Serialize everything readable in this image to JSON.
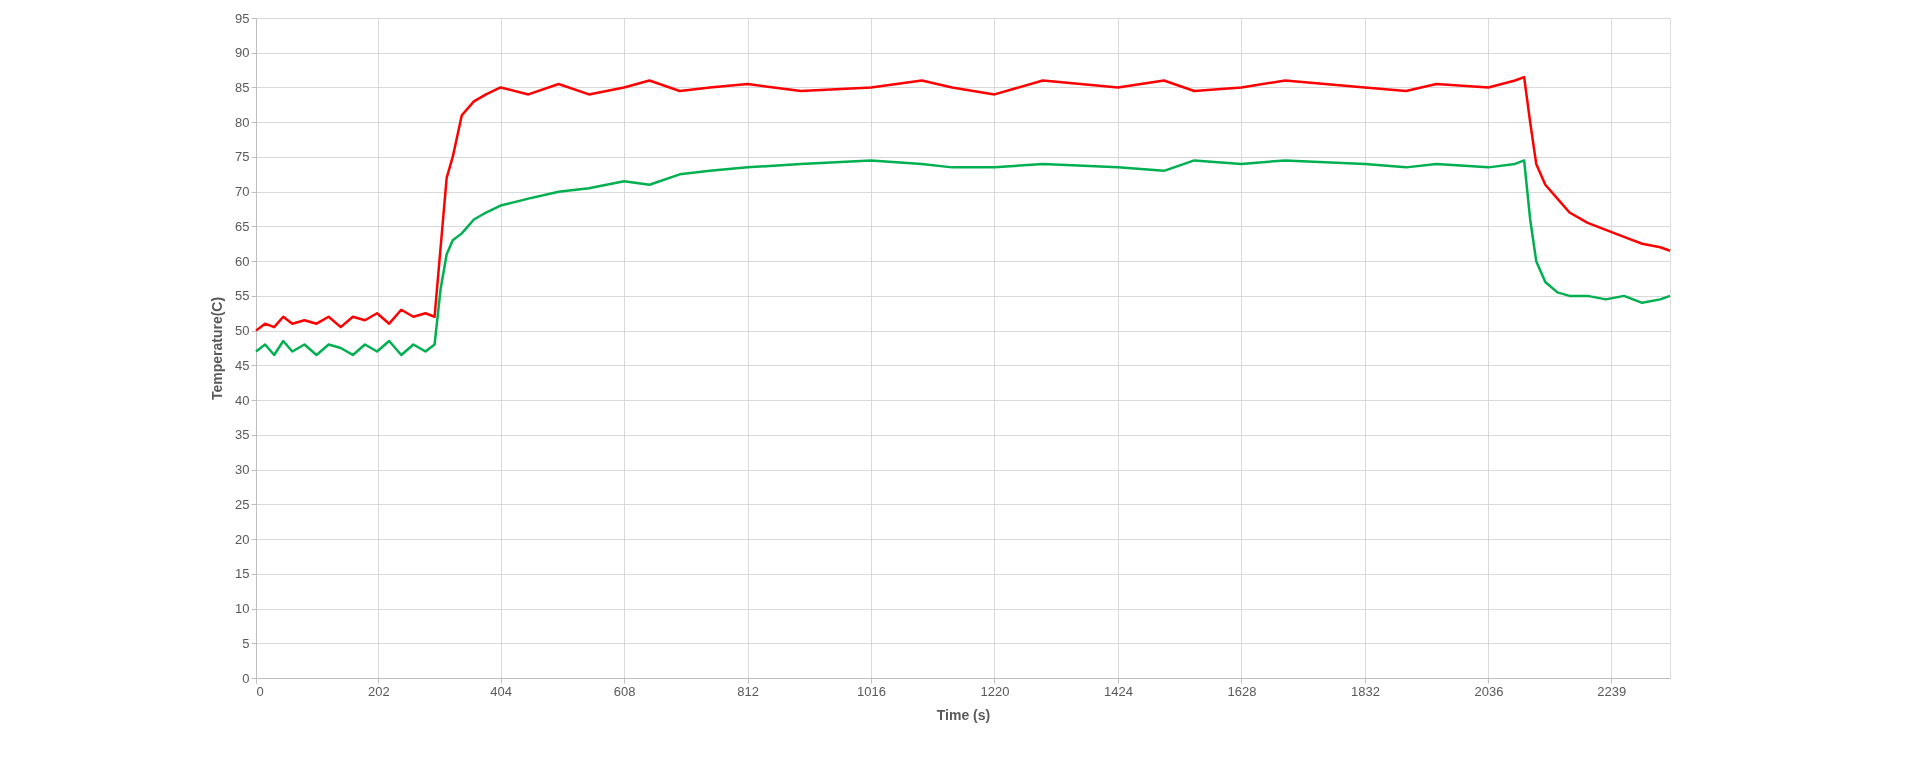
{
  "chart_data": {
    "type": "line",
    "xlabel": "Time (s)",
    "ylabel": "Temperature(C)",
    "x": [
      0,
      15,
      30,
      45,
      60,
      80,
      100,
      120,
      140,
      160,
      180,
      200,
      220,
      240,
      260,
      280,
      295,
      305,
      315,
      325,
      340,
      360,
      380,
      404,
      450,
      500,
      550,
      608,
      650,
      700,
      750,
      812,
      900,
      1016,
      1100,
      1150,
      1220,
      1300,
      1424,
      1500,
      1550,
      1628,
      1700,
      1832,
      1900,
      1950,
      2036,
      2080,
      2095,
      2105,
      2115,
      2130,
      2150,
      2170,
      2200,
      2230,
      2260,
      2290,
      2320,
      2336
    ],
    "series": [
      {
        "color": "#ff0000",
        "values": [
          50,
          51,
          50.5,
          52,
          51,
          51.5,
          51,
          52,
          50.5,
          52,
          51.5,
          52.5,
          51,
          53,
          52,
          52.5,
          52,
          62,
          72,
          75,
          81,
          83,
          84,
          85,
          84,
          85.5,
          84,
          85,
          86,
          84.5,
          85,
          85.5,
          84.5,
          85,
          86,
          85,
          84,
          86,
          85,
          86,
          84.5,
          85,
          86,
          85,
          84.5,
          85.5,
          85,
          86,
          86.5,
          80,
          74,
          71,
          69,
          67,
          65.5,
          64.5,
          63.5,
          62.5,
          62,
          61.5
        ]
      },
      {
        "color": "#00b050",
        "values": [
          47,
          48,
          46.5,
          48.5,
          47,
          48,
          46.5,
          48,
          47.5,
          46.5,
          48,
          47,
          48.5,
          46.5,
          48,
          47,
          48,
          56,
          61,
          63,
          64,
          66,
          67,
          68,
          69,
          70,
          70.5,
          71.5,
          71,
          72.5,
          73,
          73.5,
          74,
          74.5,
          74,
          73.5,
          73.5,
          74,
          73.5,
          73,
          74.5,
          74,
          74.5,
          74,
          73.5,
          74,
          73.5,
          74,
          74.5,
          66,
          60,
          57,
          55.5,
          55,
          55,
          54.5,
          55,
          54,
          54.5,
          55
        ]
      }
    ],
    "xlim": [
      0,
      2336
    ],
    "xticks": [
      0,
      202,
      404,
      608,
      812,
      1016,
      1220,
      1424,
      1628,
      1832,
      2036,
      2239
    ],
    "ylim": [
      0,
      95
    ],
    "yticks": [
      0,
      5,
      10,
      15,
      20,
      25,
      30,
      35,
      40,
      45,
      50,
      55,
      60,
      65,
      70,
      75,
      80,
      85,
      90,
      95
    ],
    "grid": true,
    "legend": false
  }
}
